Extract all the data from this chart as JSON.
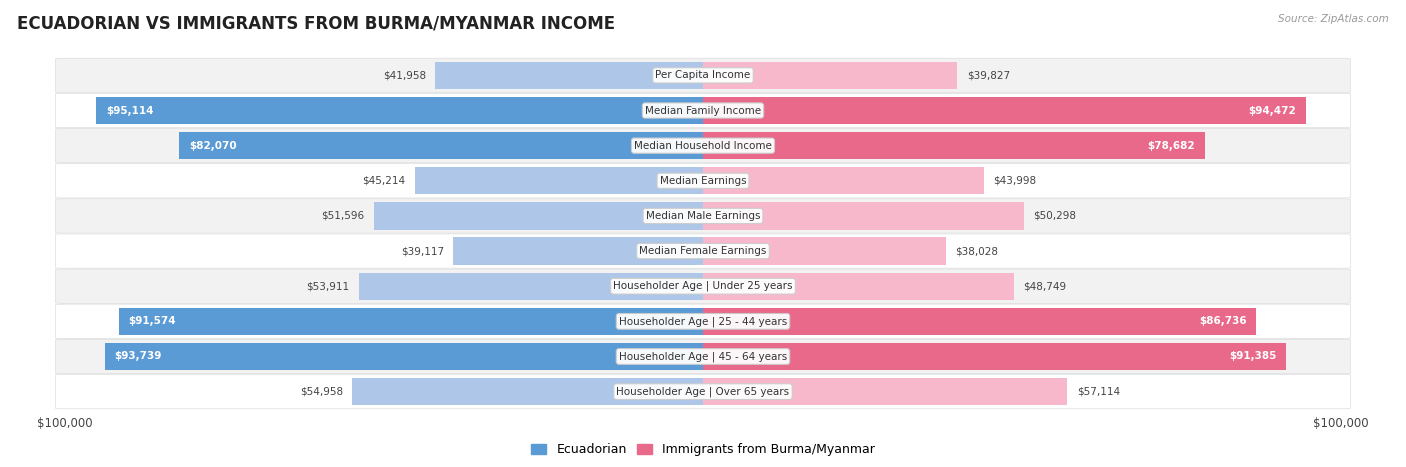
{
  "title": "ECUADORIAN VS IMMIGRANTS FROM BURMA/MYANMAR INCOME",
  "source": "Source: ZipAtlas.com",
  "categories": [
    "Per Capita Income",
    "Median Family Income",
    "Median Household Income",
    "Median Earnings",
    "Median Male Earnings",
    "Median Female Earnings",
    "Householder Age | Under 25 years",
    "Householder Age | 25 - 44 years",
    "Householder Age | 45 - 64 years",
    "Householder Age | Over 65 years"
  ],
  "ecuadorian_values": [
    41958,
    95114,
    82070,
    45214,
    51596,
    39117,
    53911,
    91574,
    93739,
    54958
  ],
  "burma_values": [
    39827,
    94472,
    78682,
    43998,
    50298,
    38028,
    48749,
    86736,
    91385,
    57114
  ],
  "ecuadorian_labels": [
    "$41,958",
    "$95,114",
    "$82,070",
    "$45,214",
    "$51,596",
    "$39,117",
    "$53,911",
    "$91,574",
    "$93,739",
    "$54,958"
  ],
  "burma_labels": [
    "$39,827",
    "$94,472",
    "$78,682",
    "$43,998",
    "$50,298",
    "$38,028",
    "$48,749",
    "$86,736",
    "$91,385",
    "$57,114"
  ],
  "max_value": 100000,
  "ecuadorian_color_light": "#aec6e8",
  "ecuadorian_color_dark": "#5b9bd5",
  "burma_color_light": "#f7b8cb",
  "burma_color_dark": "#e8698a",
  "row_bg_light": "#f2f2f2",
  "row_bg_dark": "#e8e8e8",
  "title_fontsize": 12,
  "label_fontsize": 8,
  "legend_label_ecu": "Ecuadorian",
  "legend_label_burma": "Immigrants from Burma/Myanmar",
  "x_tick_left": "$100,000",
  "x_tick_right": "$100,000",
  "inside_label_threshold": 0.6
}
